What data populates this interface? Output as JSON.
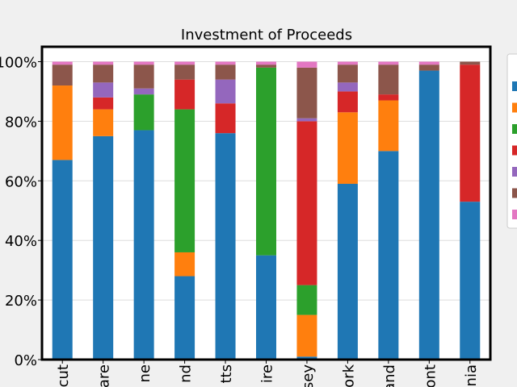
{
  "chart_data": {
    "type": "stacked-bar",
    "title": "Investment of Proceeds",
    "categories": [
      "cut",
      "are",
      "ne",
      "nd",
      "tts",
      "ire",
      "sey",
      "ork",
      "and",
      "ont",
      "nia"
    ],
    "series": [
      {
        "color": "#1f77b4",
        "values": [
          67,
          75,
          77,
          28,
          76,
          35,
          1,
          59,
          70,
          97,
          53
        ]
      },
      {
        "color": "#ff7f0e",
        "values": [
          25,
          9,
          0,
          8,
          0,
          0,
          14,
          24,
          17,
          0,
          0
        ]
      },
      {
        "color": "#2ca02c",
        "values": [
          0,
          0,
          12,
          48,
          0,
          63,
          10,
          0,
          0,
          0,
          0
        ]
      },
      {
        "color": "#d62728",
        "values": [
          0,
          4,
          0,
          10,
          10,
          0,
          55,
          7,
          2,
          0,
          46
        ]
      },
      {
        "color": "#9467bd",
        "values": [
          0,
          5,
          2,
          0,
          8,
          0,
          1,
          3,
          0,
          0,
          0
        ]
      },
      {
        "color": "#8c564b",
        "values": [
          7,
          6,
          8,
          5,
          5,
          1,
          17,
          6,
          10,
          2,
          1
        ]
      },
      {
        "color": "#e377c2",
        "values": [
          1,
          1,
          1,
          1,
          1,
          1,
          2,
          1,
          1,
          1,
          0
        ]
      }
    ],
    "ylim": [
      0,
      105
    ],
    "yticks": [
      {
        "value": 0,
        "label": "0%"
      },
      {
        "value": 20,
        "label": "20%"
      },
      {
        "value": 40,
        "label": "40%"
      },
      {
        "value": 60,
        "label": "60%"
      },
      {
        "value": 80,
        "label": "80%"
      },
      {
        "value": 100,
        "label": "100%"
      }
    ],
    "grid": true
  }
}
